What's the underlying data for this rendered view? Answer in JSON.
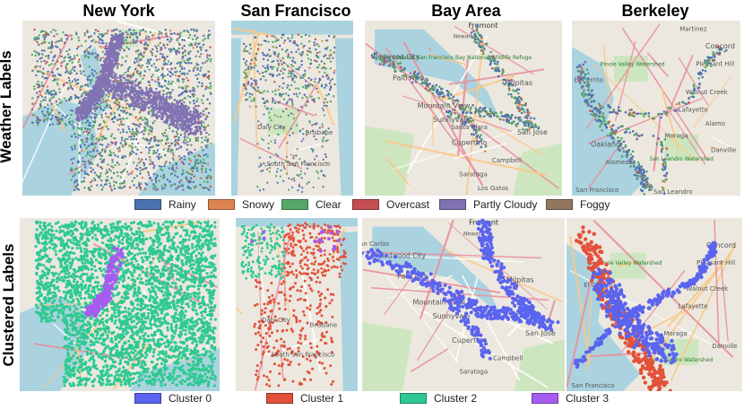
{
  "columns": [
    "New York",
    "San Francisco",
    "Bay Area",
    "Berkeley"
  ],
  "rows": [
    "Weather Labels",
    "Clustered Labels"
  ],
  "weather_legend": [
    {
      "label": "Rainy",
      "color": "#4c72b0"
    },
    {
      "label": "Snowy",
      "color": "#dd8452"
    },
    {
      "label": "Clear",
      "color": "#55a868"
    },
    {
      "label": "Overcast",
      "color": "#c44e52"
    },
    {
      "label": "Partly Cloudy",
      "color": "#8172b3"
    },
    {
      "label": "Foggy",
      "color": "#937860"
    }
  ],
  "cluster_legend": [
    {
      "label": "Cluster 0",
      "color": "#5a64ee"
    },
    {
      "label": "Cluster 1",
      "color": "#e2513a"
    },
    {
      "label": "Cluster 2",
      "color": "#2ec992"
    },
    {
      "label": "Cluster 3",
      "color": "#a65cf0"
    }
  ],
  "map_labels": {
    "sf_top": [
      "Daly City",
      "Brisbane",
      "South San Francisco"
    ],
    "bay_top": [
      "Fremont",
      "Newark",
      "Don Edwards San Francisco Bay National Wildlife Refuge",
      "Redwood City",
      "Palo Alto",
      "Milpitas",
      "Mountain View",
      "Sunnyvale",
      "Santa Clara",
      "San Jose",
      "Cupertino",
      "Campbell",
      "Saratoga",
      "Los Gatos"
    ],
    "berk_top": [
      "Martinez",
      "Concord",
      "Pleasant Hill",
      "Pinole Valley Watershed",
      "Walnut Creek",
      "El Cerrito",
      "Lafayette",
      "Alamo",
      "Moraga",
      "Oakland",
      "Alameda",
      "San Leandro Watershed",
      "Danville",
      "San Leandro",
      "San Francisco"
    ],
    "sf_bottom": [
      "Daly City",
      "Brisbane",
      "South San Francisco"
    ],
    "bay_bottom": [
      "Fremont",
      "Newark",
      "San Carlos",
      "Redwood City",
      "Palo Alto",
      "Milpitas",
      "Mountain View",
      "Sunnyvale",
      "San Jose",
      "Cupertino",
      "Campbell",
      "Saratoga"
    ],
    "berk_bottom": [
      "Concord",
      "Pleasant Hill",
      "Pinole Valley Watershed",
      "Walnut Creek",
      "El Cerrito",
      "Lafayette",
      "Moraga",
      "Danville",
      "San Leandro Watershed",
      "San Francisco"
    ]
  }
}
